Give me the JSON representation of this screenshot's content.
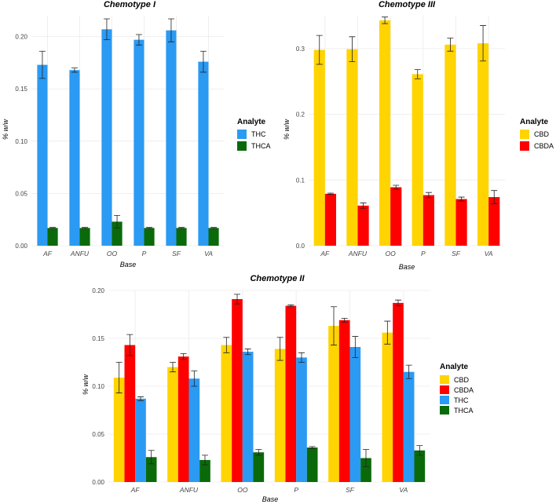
{
  "chart_data": [
    {
      "id": "c1",
      "type": "bar",
      "title": "Chemotype I",
      "xlabel": "Base",
      "ylabel": "% w/w",
      "ylim": [
        0,
        0.22
      ],
      "yticks": [
        0.0,
        0.05,
        0.1,
        0.15,
        0.2
      ],
      "tick_decimals": 2,
      "categories": [
        "AF",
        "ANFU",
        "OO",
        "P",
        "SF",
        "VA"
      ],
      "legend_title": "Analyte",
      "series": [
        {
          "name": "THC",
          "color": "#2b9af3",
          "values": [
            0.173,
            0.168,
            0.207,
            0.197,
            0.206,
            0.176
          ],
          "errors": [
            0.013,
            0.002,
            0.01,
            0.005,
            0.011,
            0.01
          ]
        },
        {
          "name": "THCA",
          "color": "#0a6a0a",
          "values": [
            0.017,
            0.017,
            0.023,
            0.017,
            0.017,
            0.017
          ],
          "errors": [
            0.0005,
            0.0005,
            0.006,
            0.0005,
            0.0005,
            0.0005
          ]
        }
      ]
    },
    {
      "id": "c3",
      "type": "bar",
      "title": "Chemotype III",
      "xlabel": "Base",
      "ylabel": "% w/w",
      "ylim": [
        0,
        0.35
      ],
      "yticks": [
        0.0,
        0.1,
        0.2,
        0.3
      ],
      "tick_decimals": 1,
      "categories": [
        "AF",
        "ANFU",
        "OO",
        "P",
        "SF",
        "VA"
      ],
      "legend_title": "Analyte",
      "series": [
        {
          "name": "CBD",
          "color": "#ffd400",
          "values": [
            0.298,
            0.299,
            0.343,
            0.261,
            0.306,
            0.308
          ],
          "errors": [
            0.022,
            0.019,
            0.005,
            0.007,
            0.01,
            0.027
          ]
        },
        {
          "name": "CBDA",
          "color": "#ff0000",
          "values": [
            0.079,
            0.061,
            0.089,
            0.077,
            0.071,
            0.074
          ],
          "errors": [
            0.001,
            0.004,
            0.003,
            0.004,
            0.003,
            0.01
          ]
        }
      ]
    },
    {
      "id": "c2",
      "type": "bar",
      "title": "Chemotype II",
      "xlabel": "Base",
      "ylabel": "% w/w",
      "ylim": [
        0,
        0.2
      ],
      "yticks": [
        0.0,
        0.05,
        0.1,
        0.15,
        0.2
      ],
      "tick_decimals": 2,
      "categories": [
        "AF",
        "ANFU",
        "OO",
        "P",
        "SF",
        "VA"
      ],
      "legend_title": "Analyte",
      "series": [
        {
          "name": "CBD",
          "color": "#ffd400",
          "values": [
            0.109,
            0.12,
            0.143,
            0.139,
            0.163,
            0.156
          ],
          "errors": [
            0.016,
            0.005,
            0.008,
            0.012,
            0.02,
            0.012
          ]
        },
        {
          "name": "CBDA",
          "color": "#ff0000",
          "values": [
            0.143,
            0.131,
            0.191,
            0.184,
            0.169,
            0.187
          ],
          "errors": [
            0.011,
            0.003,
            0.005,
            0.001,
            0.002,
            0.003
          ]
        },
        {
          "name": "THC",
          "color": "#2b9af3",
          "values": [
            0.087,
            0.108,
            0.136,
            0.13,
            0.141,
            0.115
          ],
          "errors": [
            0.002,
            0.008,
            0.003,
            0.005,
            0.011,
            0.007
          ]
        },
        {
          "name": "THCA",
          "color": "#0a6a0a",
          "values": [
            0.026,
            0.023,
            0.031,
            0.036,
            0.025,
            0.033
          ],
          "errors": [
            0.007,
            0.005,
            0.003,
            0.001,
            0.009,
            0.005
          ]
        }
      ]
    }
  ]
}
